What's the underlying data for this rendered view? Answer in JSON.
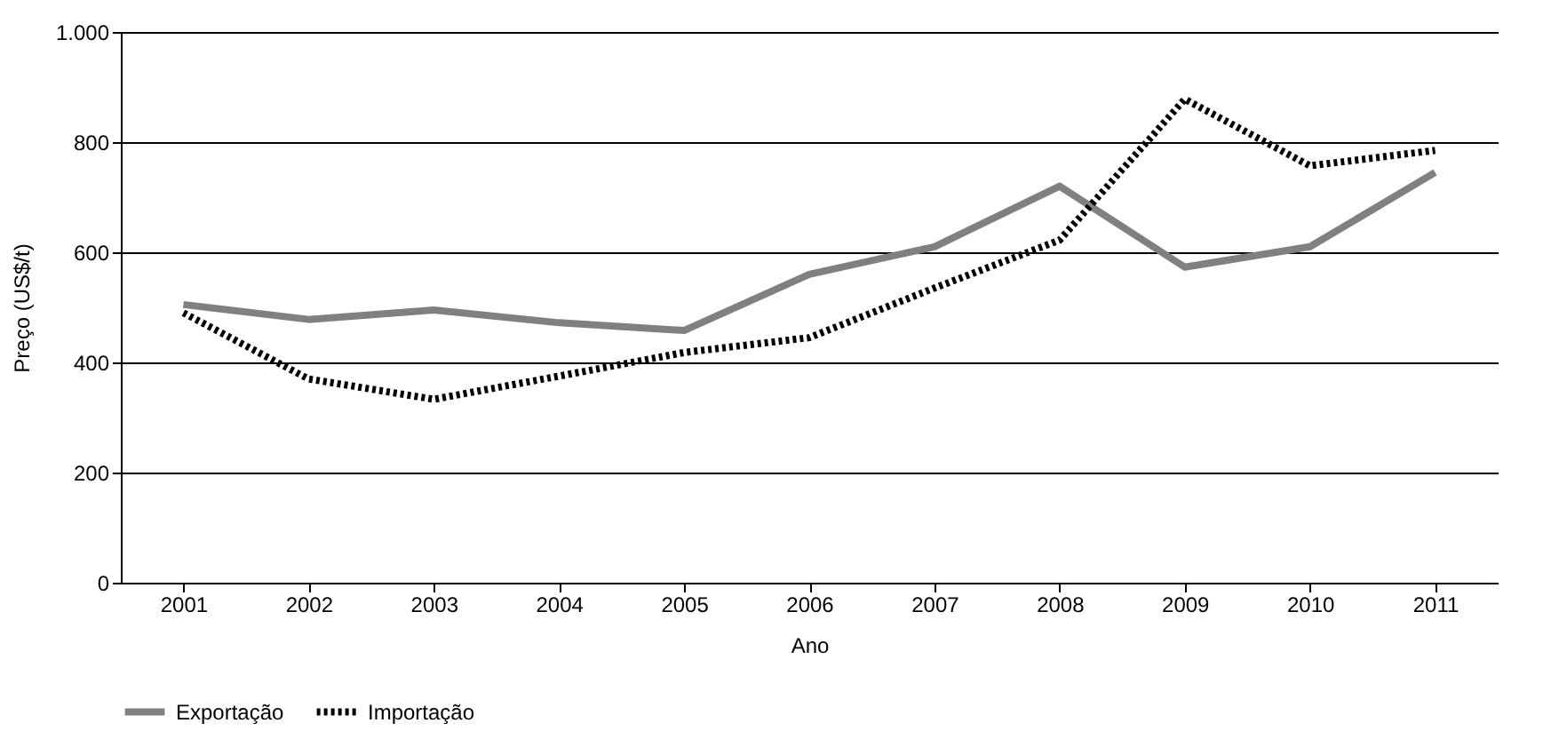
{
  "chart_data": {
    "type": "line",
    "xlabel": "Ano",
    "ylabel": "Preço (US$/t)",
    "categories": [
      "2001",
      "2002",
      "2003",
      "2004",
      "2005",
      "2006",
      "2007",
      "2008",
      "2009",
      "2010",
      "2011"
    ],
    "series": [
      {
        "name": "Exportação",
        "color": "#808080",
        "line_style": "solid",
        "values": [
          505,
          478,
          495,
          472,
          458,
          560,
          610,
          720,
          573,
          610,
          745
        ]
      },
      {
        "name": "Importação",
        "color": "#000000",
        "line_style": "dotted",
        "values": [
          490,
          370,
          333,
          375,
          418,
          445,
          535,
          622,
          878,
          757,
          785
        ]
      }
    ],
    "ylim": [
      0,
      1000
    ],
    "yticks": [
      0,
      200,
      400,
      600,
      800,
      {
        "value": 1000,
        "label": "1.000"
      }
    ],
    "grid": "y",
    "legend": "bottom",
    "marker": "none"
  }
}
